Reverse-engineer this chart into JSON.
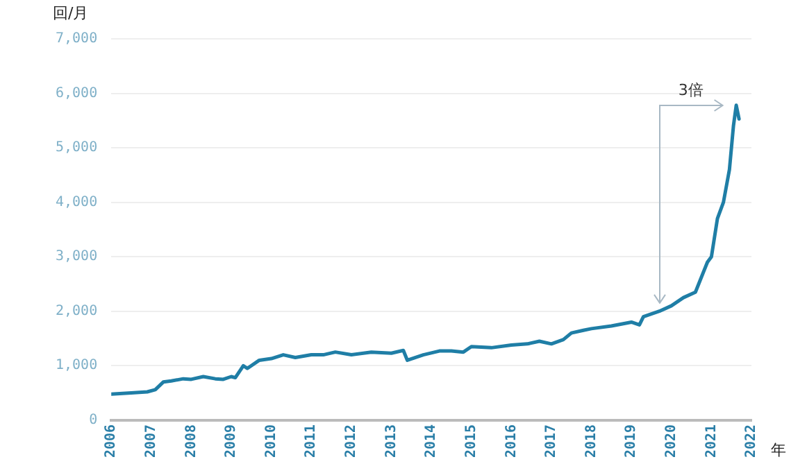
{
  "chart_data": {
    "type": "line",
    "xlabel": "年",
    "ylabel": "回/月",
    "x": [
      2006,
      2006.5,
      2006.9,
      2007.1,
      2007.3,
      2007.5,
      2007.8,
      2008,
      2008.3,
      2008.6,
      2008.8,
      2009,
      2009.1,
      2009.3,
      2009.4,
      2009.7,
      2010,
      2010.3,
      2010.6,
      2011,
      2011.3,
      2011.6,
      2012,
      2012.5,
      2013,
      2013.3,
      2013.4,
      2013.8,
      2014.2,
      2014.5,
      2014.8,
      2015,
      2015.5,
      2016,
      2016.4,
      2016.7,
      2017,
      2017.3,
      2017.5,
      2017.8,
      2018,
      2018.5,
      2019,
      2019.2,
      2019.3,
      2019.7,
      2020,
      2020.3,
      2020.6,
      2020.9,
      2021,
      2021.15,
      2021.3,
      2021.45,
      2021.55,
      2021.62,
      2021.69
    ],
    "series": [
      {
        "color": "#1f7ea6",
        "values": [
          480,
          500,
          520,
          560,
          700,
          720,
          760,
          750,
          800,
          760,
          750,
          800,
          780,
          1000,
          950,
          1100,
          1130,
          1200,
          1150,
          1200,
          1200,
          1250,
          1200,
          1250,
          1230,
          1280,
          1100,
          1200,
          1270,
          1270,
          1250,
          1350,
          1330,
          1380,
          1400,
          1450,
          1400,
          1480,
          1600,
          1650,
          1680,
          1730,
          1800,
          1750,
          1900,
          2000,
          2100,
          2250,
          2350,
          2900,
          3000,
          3700,
          4000,
          4600,
          5400,
          5780,
          5530
        ]
      }
    ],
    "xlim": [
      2006,
      2022
    ],
    "xticks": [
      2006,
      2007,
      2008,
      2009,
      2010,
      2011,
      2012,
      2013,
      2014,
      2015,
      2016,
      2017,
      2018,
      2019,
      2020,
      2021,
      2022
    ],
    "ylim": [
      0,
      7000
    ],
    "yticks": [
      0,
      {
        "value": 1000,
        "label": "1,000"
      },
      {
        "value": 2000,
        "label": "2,000"
      },
      {
        "value": 3000,
        "label": "3,000"
      },
      {
        "value": 4000,
        "label": "4,000"
      },
      {
        "value": 5000,
        "label": "5,000"
      },
      {
        "value": 6000,
        "label": "6,000"
      },
      {
        "value": 7000,
        "label": "7,000"
      }
    ],
    "grid": "y",
    "legend": false,
    "marker": "none",
    "line_style": "solid",
    "annotations": [
      "3倍"
    ]
  }
}
